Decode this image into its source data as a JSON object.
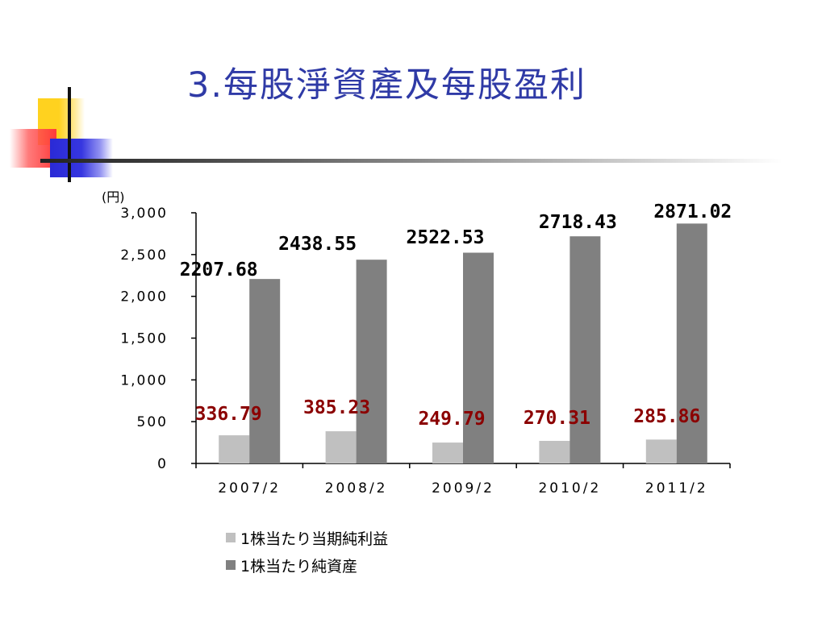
{
  "slide": {
    "title": "3.每股淨資產及每股盈利"
  },
  "colors": {
    "title": "#2f3aa6",
    "eps_bar": "#c0c0c0",
    "assets_bar": "#808080",
    "eps_label": "#8b0000",
    "assets_label": "#000000"
  },
  "chart_data": {
    "type": "bar",
    "y_unit": "(円)",
    "categories": [
      "2007/2",
      "2008/2",
      "2009/2",
      "2010/2",
      "2011/2"
    ],
    "ylim": [
      0,
      3000
    ],
    "y_ticks": [
      {
        "value": 0,
        "label": "0"
      },
      {
        "value": 500,
        "label": "500"
      },
      {
        "value": 1000,
        "label": "1,000"
      },
      {
        "value": 1500,
        "label": "1,500"
      },
      {
        "value": 2000,
        "label": "2,000"
      },
      {
        "value": 2500,
        "label": "2,500"
      },
      {
        "value": 3000,
        "label": "3,000"
      }
    ],
    "grid": false,
    "legend_position": "bottom",
    "series": [
      {
        "name": "1株当たり当期純利益",
        "color": "#c0c0c0",
        "values": [
          336.79,
          385.23,
          249.79,
          270.31,
          285.86
        ],
        "labels": [
          "336.79",
          "385.23",
          "249.79",
          "270.31",
          "285.86"
        ]
      },
      {
        "name": "1株当たり純資産",
        "color": "#808080",
        "values": [
          2207.68,
          2438.55,
          2522.53,
          2718.43,
          2871.02
        ],
        "labels": [
          "2207.68",
          "2438.55",
          "2522.53",
          "2718.43",
          "2871.02"
        ]
      }
    ]
  }
}
